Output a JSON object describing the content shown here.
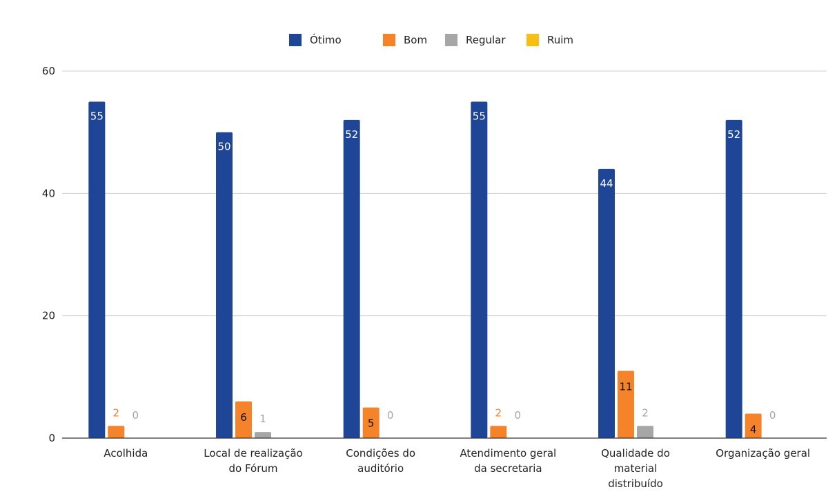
{
  "chart_data": {
    "type": "bar",
    "categories": [
      [
        "Acolhida"
      ],
      [
        "Local de realização",
        "do Fórum"
      ],
      [
        "Condições do",
        "auditório"
      ],
      [
        "Atendimento geral",
        "da secretaria"
      ],
      [
        "Qualidade do",
        "material",
        "distribuído"
      ],
      [
        "Organização geral"
      ]
    ],
    "series": [
      {
        "name": "Ótimo",
        "color": "#1f4597",
        "values": [
          55,
          50,
          52,
          55,
          44,
          52
        ],
        "labels": [
          "55",
          "50",
          "52",
          "55",
          "44",
          "52"
        ]
      },
      {
        "name": "Bom",
        "color": "#f4832a",
        "values": [
          2,
          6,
          5,
          2,
          11,
          4
        ],
        "labels": [
          "2",
          "6",
          "5",
          "2",
          "11",
          "4"
        ]
      },
      {
        "name": "Regular",
        "color": "#a6a6a6",
        "values": [
          0,
          1,
          0,
          0,
          2,
          0
        ],
        "labels": [
          "0",
          "1",
          "0",
          "0",
          "2",
          "0"
        ]
      },
      {
        "name": "Ruim",
        "color": "#f7bf14",
        "values": [
          0,
          0,
          0,
          0,
          0,
          0
        ],
        "labels": []
      }
    ],
    "yticks": [
      "0",
      "20",
      "40",
      "60"
    ],
    "ylim": [
      0,
      60
    ],
    "grid": true,
    "legend_position": "top-center",
    "title": "",
    "xlabel": "",
    "ylabel": ""
  }
}
